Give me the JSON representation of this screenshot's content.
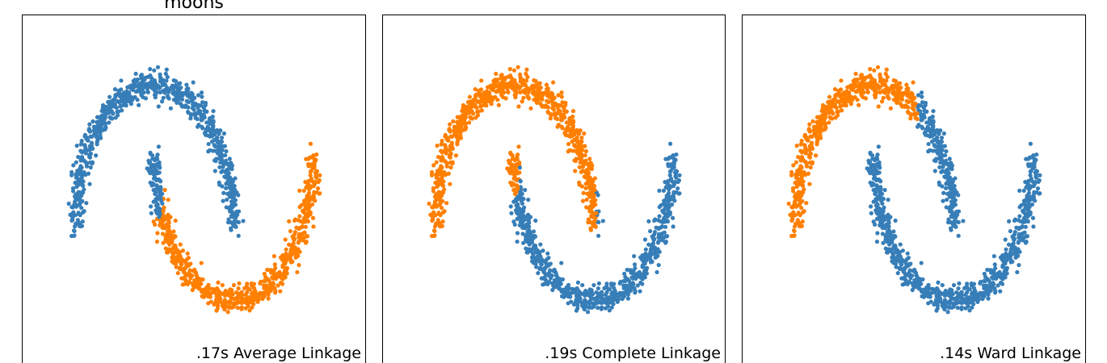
{
  "figure_title": "moons",
  "colors": {
    "cluster_a": "#377eb8",
    "cluster_b": "#ff7f00",
    "frame": "#000000"
  },
  "chart_data": [
    {
      "type": "scatter",
      "title": "moons",
      "label": ".17s Average Linkage",
      "xlim": [
        -2.5,
        2.5
      ],
      "ylim": [
        -2.5,
        2.5
      ],
      "xticks": false,
      "yticks": false,
      "dataset": "two interleaving moons, 1500 points",
      "clusters": [
        {
          "color": "#377eb8",
          "region": "upper moon plus upper part of lower moon's left arm"
        },
        {
          "color": "#ff7f00",
          "region": "remainder of lower moon"
        }
      ],
      "rule": "average"
    },
    {
      "type": "scatter",
      "label": ".19s Complete Linkage",
      "xlim": [
        -2.5,
        2.5
      ],
      "ylim": [
        -2.5,
        2.5
      ],
      "xticks": false,
      "yticks": false,
      "dataset": "two interleaving moons, 1500 points",
      "clusters": [
        {
          "color": "#ff7f00",
          "region": "upper moon's left arm and tip of lower moon's left arm"
        },
        {
          "color": "#377eb8",
          "region": "upper moon's right tip and most of lower moon"
        }
      ],
      "rule": "complete"
    },
    {
      "type": "scatter",
      "label": ".14s Ward Linkage",
      "xlim": [
        -2.5,
        2.5
      ],
      "ylim": [
        -2.5,
        2.5
      ],
      "xticks": false,
      "yticks": false,
      "dataset": "two interleaving moons, 1500 points",
      "clusters": [
        {
          "color": "#ff7f00",
          "region": "upper moon's left half"
        },
        {
          "color": "#377eb8",
          "region": "upper moon's right arm and entire lower moon"
        }
      ],
      "rule": "ward"
    }
  ]
}
